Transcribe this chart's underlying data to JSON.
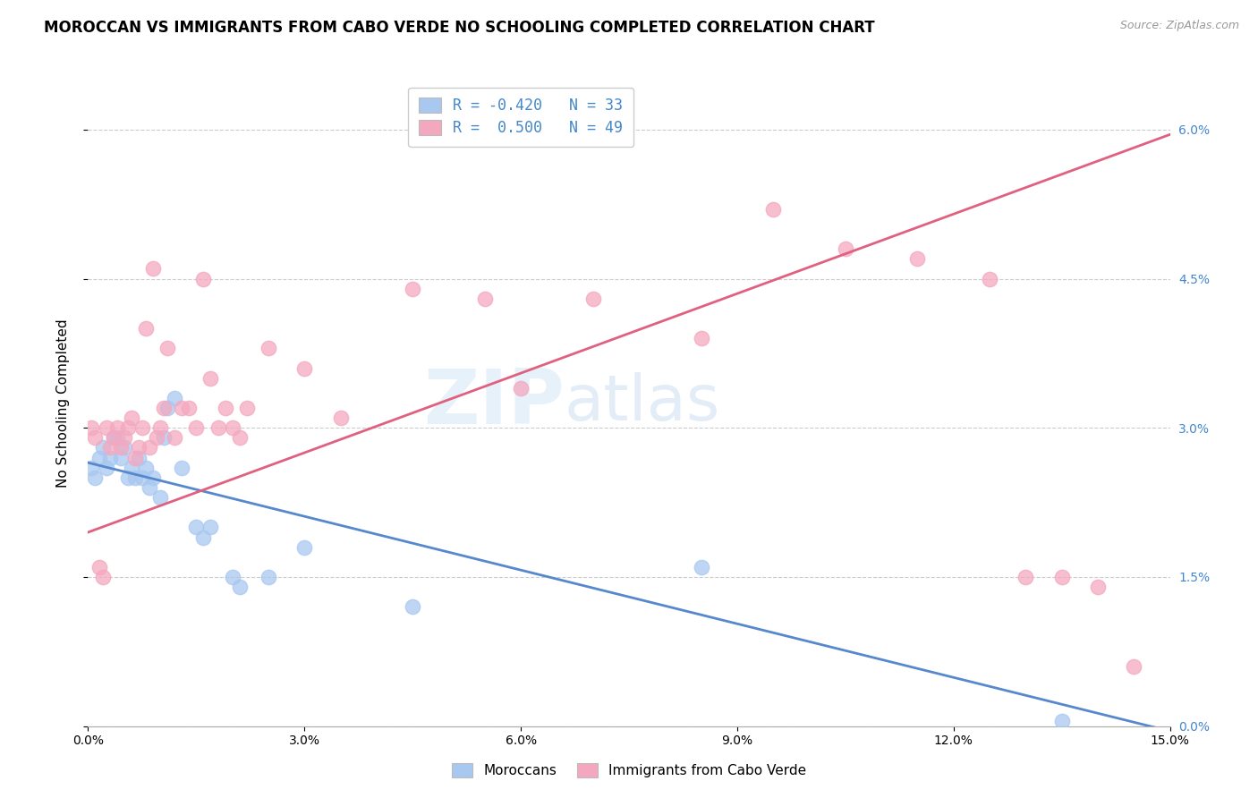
{
  "title": "MOROCCAN VS IMMIGRANTS FROM CABO VERDE NO SCHOOLING COMPLETED CORRELATION CHART",
  "source": "Source: ZipAtlas.com",
  "blue_R": -0.42,
  "blue_N": 33,
  "pink_R": 0.5,
  "pink_N": 49,
  "legend_label_blue": "Moroccans",
  "legend_label_pink": "Immigrants from Cabo Verde",
  "blue_color": "#A8C8F0",
  "pink_color": "#F4A8C0",
  "blue_line_color": "#5588CC",
  "pink_line_color": "#E06080",
  "watermark_zip": "ZIP",
  "watermark_atlas": "atlas",
  "blue_scatter_x": [
    0.05,
    0.1,
    0.15,
    0.2,
    0.25,
    0.3,
    0.35,
    0.4,
    0.45,
    0.5,
    0.55,
    0.6,
    0.65,
    0.7,
    0.75,
    0.8,
    0.85,
    0.9,
    1.0,
    1.05,
    1.1,
    1.2,
    1.3,
    1.5,
    1.6,
    1.7,
    2.0,
    2.1,
    2.5,
    3.0,
    4.5,
    8.5,
    13.5
  ],
  "blue_scatter_y": [
    2.6,
    2.5,
    2.7,
    2.8,
    2.6,
    2.7,
    2.9,
    2.9,
    2.7,
    2.8,
    2.5,
    2.6,
    2.5,
    2.7,
    2.5,
    2.6,
    2.4,
    2.5,
    2.3,
    2.9,
    3.2,
    3.3,
    2.6,
    2.0,
    1.9,
    2.0,
    1.5,
    1.4,
    1.5,
    1.8,
    1.2,
    1.6,
    0.05
  ],
  "pink_scatter_x": [
    0.05,
    0.1,
    0.15,
    0.2,
    0.25,
    0.3,
    0.35,
    0.4,
    0.45,
    0.5,
    0.55,
    0.6,
    0.65,
    0.7,
    0.75,
    0.8,
    0.85,
    0.9,
    0.95,
    1.0,
    1.05,
    1.1,
    1.2,
    1.3,
    1.4,
    1.5,
    1.6,
    1.7,
    1.8,
    1.9,
    2.0,
    2.1,
    2.2,
    2.5,
    3.0,
    3.5,
    4.5,
    5.5,
    6.0,
    7.0,
    8.5,
    9.5,
    10.5,
    11.5,
    12.5,
    13.0,
    13.5,
    14.0,
    14.5
  ],
  "pink_scatter_y": [
    3.0,
    2.9,
    1.6,
    1.5,
    3.0,
    2.8,
    2.9,
    3.0,
    2.8,
    2.9,
    3.0,
    3.1,
    2.7,
    2.8,
    3.0,
    4.0,
    2.8,
    4.6,
    2.9,
    3.0,
    3.2,
    3.8,
    2.9,
    3.2,
    3.2,
    3.0,
    4.5,
    3.5,
    3.0,
    3.2,
    3.0,
    2.9,
    3.2,
    3.8,
    3.6,
    3.1,
    4.4,
    4.3,
    3.4,
    4.3,
    3.9,
    5.2,
    4.8,
    4.7,
    4.5,
    1.5,
    1.5,
    1.4,
    0.6
  ],
  "blue_line_x0": 0.0,
  "blue_line_y0": 2.65,
  "blue_line_x1": 15.0,
  "blue_line_y1": -0.05,
  "pink_line_x0": 0.0,
  "pink_line_y0": 1.95,
  "pink_line_x1": 15.0,
  "pink_line_y1": 5.95,
  "xlim": [
    0,
    15.0
  ],
  "ylim": [
    0,
    6.5
  ],
  "x_tick_vals": [
    0,
    3,
    6,
    9,
    12,
    15
  ],
  "x_tick_labels": [
    "0.0%",
    "3.0%",
    "6.0%",
    "9.0%",
    "12.0%",
    "15.0%"
  ],
  "y_tick_vals": [
    0,
    1.5,
    3.0,
    4.5,
    6.0
  ],
  "y_tick_labels": [
    "0.0%",
    "1.5%",
    "3.0%",
    "4.5%",
    "6.0%"
  ],
  "title_fontsize": 12,
  "axis_label_fontsize": 11,
  "tick_fontsize": 10,
  "legend_fontsize": 12
}
